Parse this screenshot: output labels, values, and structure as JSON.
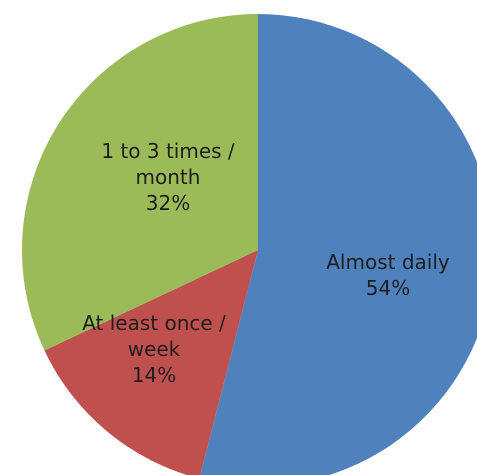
{
  "chart_data": {
    "type": "pie",
    "title": "",
    "start_angle_deg": 0,
    "direction": "clockwise",
    "slices": [
      {
        "label": "Almost daily",
        "value": 54,
        "value_label": "54%",
        "color": "#4f81bd",
        "label_lines": [
          "Almost daily",
          "54%"
        ]
      },
      {
        "label": "At least once / week",
        "value": 14,
        "value_label": "14%",
        "color": "#c0504d",
        "label_lines": [
          "At least once /",
          "week",
          "14%"
        ]
      },
      {
        "label": "1 to 3 times / month",
        "value": 32,
        "value_label": "32%",
        "color": "#9bbb59",
        "label_lines": [
          "1 to 3 times /",
          "month",
          "32%"
        ]
      }
    ]
  }
}
